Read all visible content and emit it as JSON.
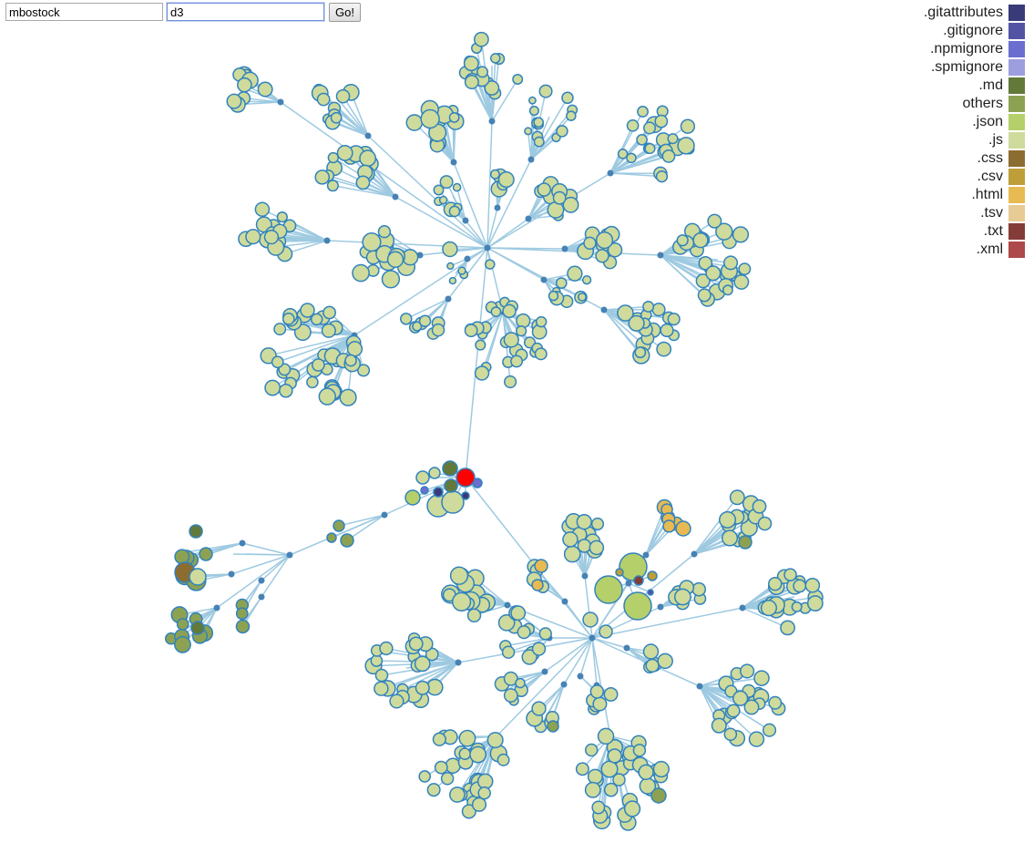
{
  "search": {
    "user_value": "mbostock",
    "repo_value": "d3",
    "go_label": "Go!"
  },
  "legend": [
    {
      "label": ".gitattributes",
      "color": "#393b79"
    },
    {
      "label": ".gitignore",
      "color": "#5254a3"
    },
    {
      "label": ".npmignore",
      "color": "#6b6ecf"
    },
    {
      "label": ".spmignore",
      "color": "#9c9ede"
    },
    {
      "label": ".md",
      "color": "#637939"
    },
    {
      "label": "others",
      "color": "#8ca252"
    },
    {
      "label": ".json",
      "color": "#b5cf6b"
    },
    {
      "label": ".js",
      "color": "#cedb9c"
    },
    {
      "label": ".css",
      "color": "#8c6d31"
    },
    {
      "label": ".csv",
      "color": "#bd9e39"
    },
    {
      "label": ".html",
      "color": "#e7ba52"
    },
    {
      "label": ".tsv",
      "color": "#e7cb94"
    },
    {
      "label": ".txt",
      "color": "#843c39"
    },
    {
      "label": ".xml",
      "color": "#ad494a"
    }
  ],
  "graph": {
    "link_color": "#9ecae1",
    "node_stroke": "#3182bd",
    "dir_fill": "#4682b4",
    "root_fill": "#ff0000"
  }
}
